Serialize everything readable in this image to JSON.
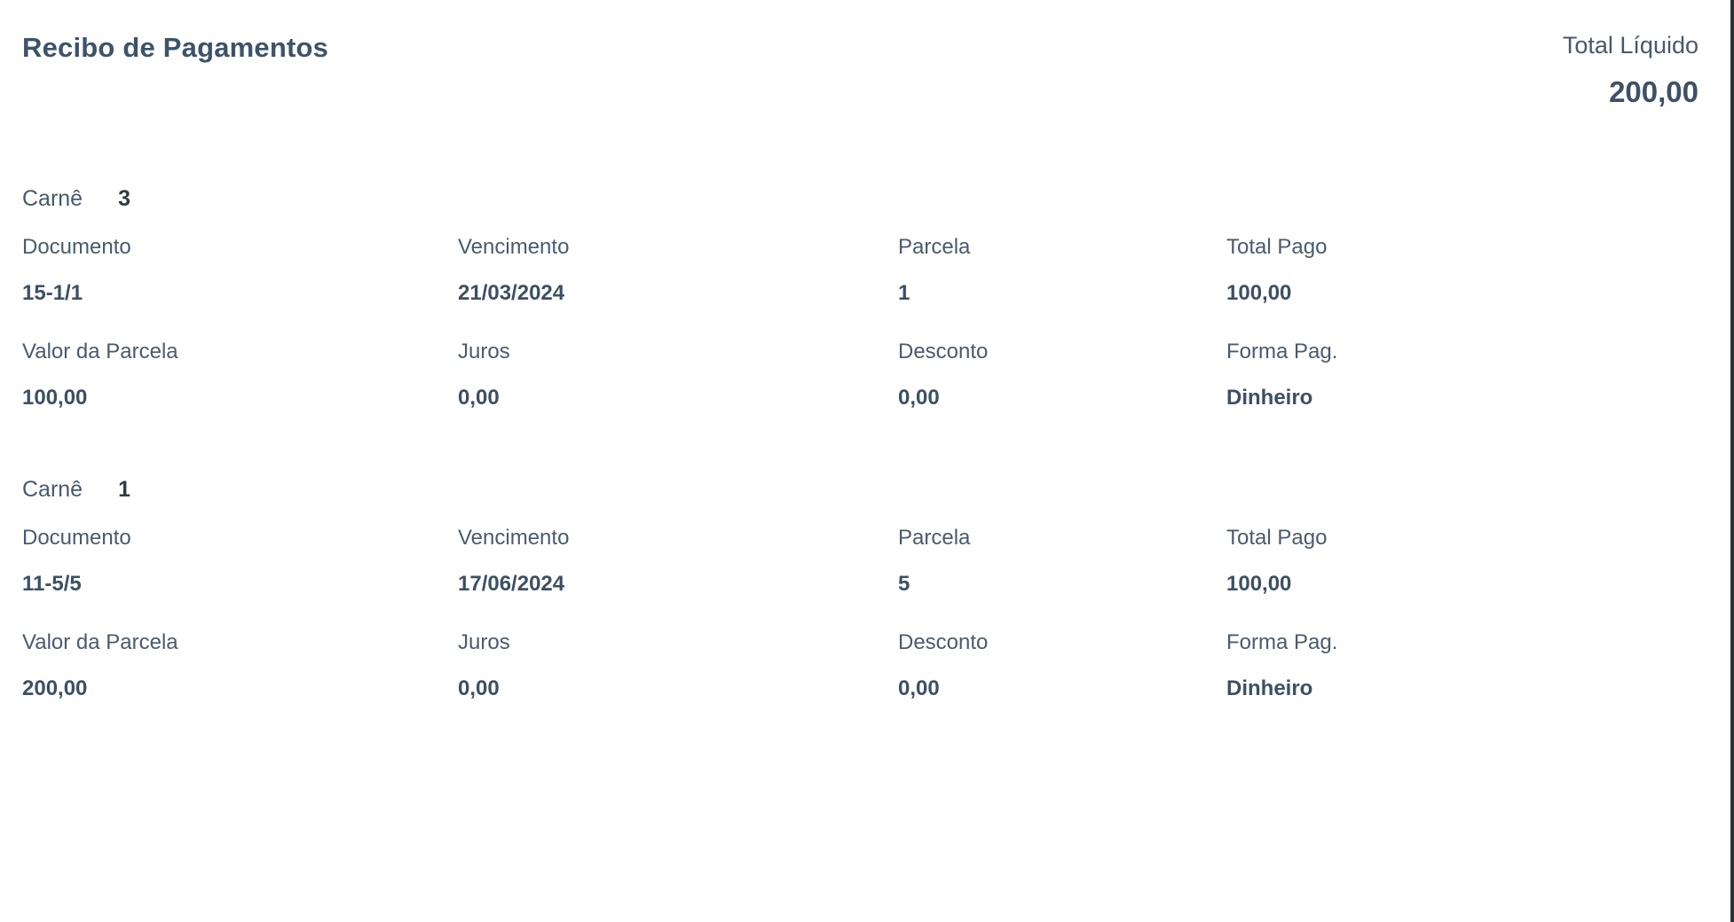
{
  "page": {
    "title": "Recibo de Pagamentos",
    "total_label": "Total Líquido",
    "total_value": "200,00"
  },
  "field_labels": {
    "carne": "Carnê",
    "documento": "Documento",
    "vencimento": "Vencimento",
    "parcela": "Parcela",
    "total_pago": "Total Pago",
    "valor_parcela": "Valor da Parcela",
    "juros": "Juros",
    "desconto": "Desconto",
    "forma_pag": "Forma Pag."
  },
  "receipts": [
    {
      "carne": "3",
      "documento": "15-1/1",
      "vencimento": "21/03/2024",
      "parcela": "1",
      "total_pago": "100,00",
      "valor_parcela": "100,00",
      "juros": "0,00",
      "desconto": "0,00",
      "forma_pag": "Dinheiro"
    },
    {
      "carne": "1",
      "documento": "11-5/5",
      "vencimento": "17/06/2024",
      "parcela": "5",
      "total_pago": "100,00",
      "valor_parcela": "200,00",
      "juros": "0,00",
      "desconto": "0,00",
      "forma_pag": "Dinheiro"
    }
  ],
  "colors": {
    "label_text": "#4a5b6d",
    "value_text": "#3d5063",
    "title_text": "#3d5368",
    "carne_number_text": "#343a40",
    "scrollbar": "#2e3237",
    "background": "#ffffff"
  }
}
